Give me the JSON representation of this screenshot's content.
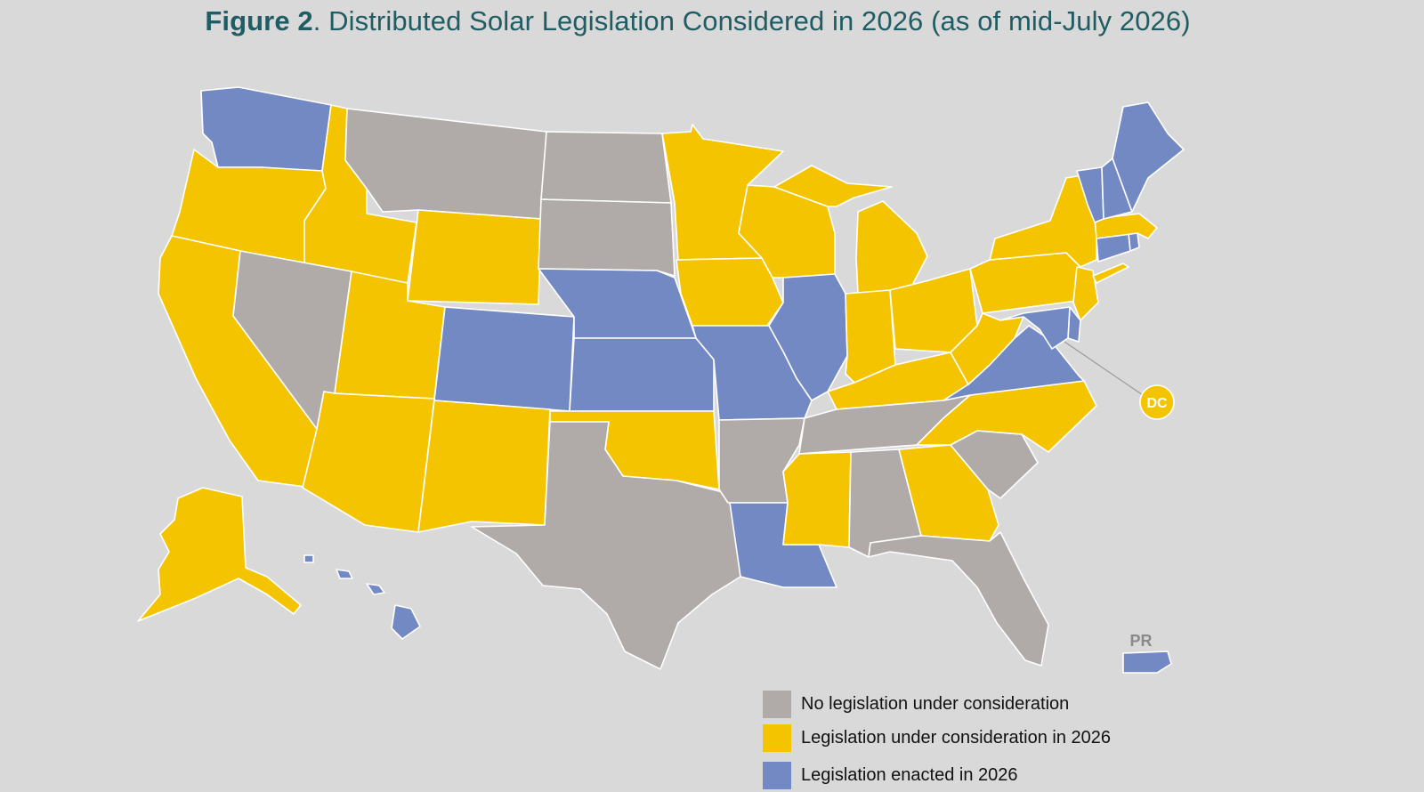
{
  "title": {
    "prefix": "Figure 2",
    "text": ". Distributed Solar Legislation Considered in 2026 (as of mid-July 2026)"
  },
  "categories": {
    "none": {
      "label": "No legislation under consideration",
      "color": "#b0aaa8"
    },
    "consideration": {
      "label": "Legislation under consideration in 2026",
      "color": "#f5c400"
    },
    "enacted": {
      "label": "Legislation enacted in 2026",
      "color": "#7389c4"
    }
  },
  "legend": {
    "none": "No legislation under consideration",
    "consideration": "Legislation under consideration in 2026",
    "enacted": "Legislation enacted in 2026"
  },
  "labels": {
    "dc": "DC",
    "pr": "PR"
  },
  "states": {
    "WA": "enacted",
    "OR": "consideration",
    "CA": "consideration",
    "ID": "consideration",
    "NV": "none",
    "MT": "none",
    "WY": "consideration",
    "UT": "consideration",
    "AZ": "consideration",
    "CO": "enacted",
    "NM": "consideration",
    "ND": "none",
    "SD": "none",
    "NE": "enacted",
    "KS": "enacted",
    "OK": "consideration",
    "TX": "none",
    "MN": "consideration",
    "IA": "consideration",
    "MO": "enacted",
    "AR": "none",
    "LA": "enacted",
    "WI": "consideration",
    "IL": "enacted",
    "MI": "consideration",
    "IN": "consideration",
    "OH": "consideration",
    "KY": "consideration",
    "TN": "none",
    "MS": "consideration",
    "AL": "none",
    "GA": "consideration",
    "FL": "none",
    "SC": "none",
    "NC": "consideration",
    "VA": "enacted",
    "WV": "consideration",
    "PA": "consideration",
    "NY": "consideration",
    "VT": "enacted",
    "NH": "enacted",
    "ME": "enacted",
    "MA": "consideration",
    "CT": "enacted",
    "RI": "enacted",
    "NJ": "consideration",
    "DE": "enacted",
    "MD": "enacted",
    "DC": "consideration",
    "AK": "consideration",
    "HI": "enacted",
    "PR": "enacted"
  }
}
